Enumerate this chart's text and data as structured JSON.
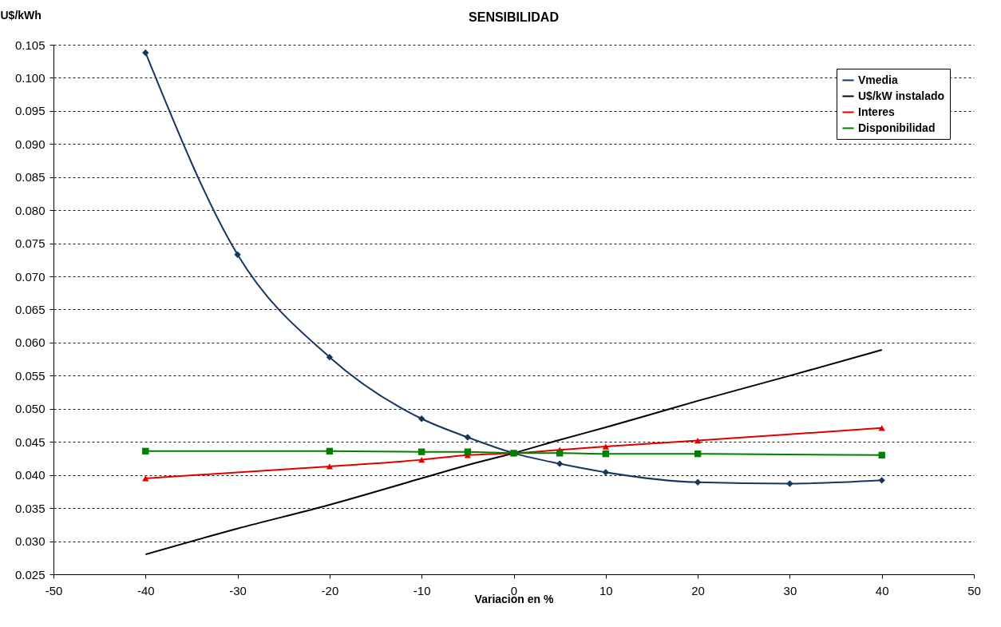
{
  "chart_data": {
    "type": "line",
    "title": "SENSIBILIDAD",
    "xlabel": "Variacion en %",
    "ylabel": "U$/kWh",
    "xlim": [
      -50,
      50
    ],
    "xticks": [
      -50,
      -40,
      -30,
      -20,
      -10,
      0,
      10,
      20,
      30,
      40,
      50
    ],
    "ylim": [
      0.025,
      0.105
    ],
    "yticks": [
      {
        "value": 0.025,
        "label": "0.025"
      },
      {
        "value": 0.03,
        "label": "0.030"
      },
      {
        "value": 0.035,
        "label": "0.035"
      },
      {
        "value": 0.04,
        "label": "0.040"
      },
      {
        "value": 0.045,
        "label": "0.045"
      },
      {
        "value": 0.05,
        "label": "0.050"
      },
      {
        "value": 0.055,
        "label": "0.055"
      },
      {
        "value": 0.06,
        "label": "0.060"
      },
      {
        "value": 0.065,
        "label": "0.065"
      },
      {
        "value": 0.07,
        "label": "0.070"
      },
      {
        "value": 0.075,
        "label": "0.075"
      },
      {
        "value": 0.08,
        "label": "0.080"
      },
      {
        "value": 0.085,
        "label": "0.085"
      },
      {
        "value": 0.09,
        "label": "0.090"
      },
      {
        "value": 0.095,
        "label": "0.095"
      },
      {
        "value": 0.1,
        "label": "0.100"
      },
      {
        "value": 0.105,
        "label": "0.105"
      }
    ],
    "grid": "y",
    "legend": "top right",
    "series": [
      {
        "name": "Vmedia",
        "color": "#17375e",
        "marker": "diamond",
        "x": [
          -40,
          -30,
          -20,
          -10,
          -5,
          0,
          5,
          10,
          20,
          30,
          40
        ],
        "values": [
          0.1038,
          0.0733,
          0.0578,
          0.0485,
          0.0457,
          0.0433,
          0.0417,
          0.0404,
          0.0389,
          0.0387,
          0.0392
        ]
      },
      {
        "name": "U$/kW instalado",
        "color": "#000000",
        "marker": "none",
        "x": [
          -40,
          -30,
          -20,
          -10,
          -5,
          0,
          5,
          10,
          20,
          30,
          40
        ],
        "values": [
          0.028,
          0.0319,
          0.0355,
          0.0395,
          0.0415,
          0.0433,
          0.0453,
          0.0472,
          0.0512,
          0.055,
          0.0589
        ]
      },
      {
        "name": "Interes",
        "color": "#e00000",
        "marker": "triangle",
        "x": [
          -40,
          -20,
          -10,
          -5,
          0,
          5,
          10,
          20,
          40
        ],
        "values": [
          0.0395,
          0.0413,
          0.0423,
          0.043,
          0.0433,
          0.0438,
          0.0443,
          0.0452,
          0.0471
        ]
      },
      {
        "name": "Disponibilidad",
        "color": "#008000",
        "marker": "square",
        "x": [
          -40,
          -20,
          -10,
          -5,
          0,
          5,
          10,
          20,
          40
        ],
        "values": [
          0.0436,
          0.0436,
          0.0435,
          0.0435,
          0.0433,
          0.0433,
          0.0432,
          0.0432,
          0.043
        ]
      }
    ]
  }
}
